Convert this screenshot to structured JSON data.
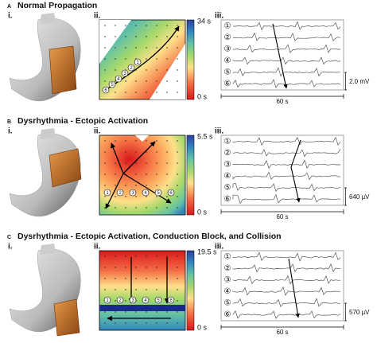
{
  "panels": [
    {
      "letter": "A",
      "title": "Normal Propagation",
      "sub": [
        "i.",
        "ii.",
        "iii."
      ],
      "scale_max": "34 s",
      "scale_min": "0 s",
      "amplitude": "2.0 mV",
      "duration": "60 s",
      "channels": [
        "①",
        "②",
        "③",
        "④",
        "⑤",
        "⑥"
      ],
      "map_markers": [
        "6",
        "5",
        "4",
        "3",
        "2",
        "1"
      ]
    },
    {
      "letter": "B",
      "title": "Dysrhythmia - Ectopic Activation",
      "sub": [
        "i.",
        "ii.",
        "iii."
      ],
      "scale_max": "5.5 s",
      "scale_min": "0 s",
      "amplitude": "640 µV",
      "duration": "60 s",
      "channels": [
        "①",
        "②",
        "③",
        "④",
        "⑤",
        "⑥"
      ],
      "map_markers": [
        "1",
        "2",
        "3",
        "4",
        "5",
        "6"
      ]
    },
    {
      "letter": "C",
      "title": "Dysrhythmia - Ectopic Activation, Conduction Block, and Collision",
      "sub": [
        "i.",
        "ii.",
        "iii."
      ],
      "scale_max": "19.5 s",
      "scale_min": "0 s",
      "amplitude": "570 µV",
      "duration": "60 s",
      "channels": [
        "①",
        "②",
        "③",
        "④",
        "⑤",
        "⑥"
      ],
      "map_markers": [
        "1",
        "2",
        "3",
        "4",
        "5",
        "6"
      ]
    }
  ]
}
